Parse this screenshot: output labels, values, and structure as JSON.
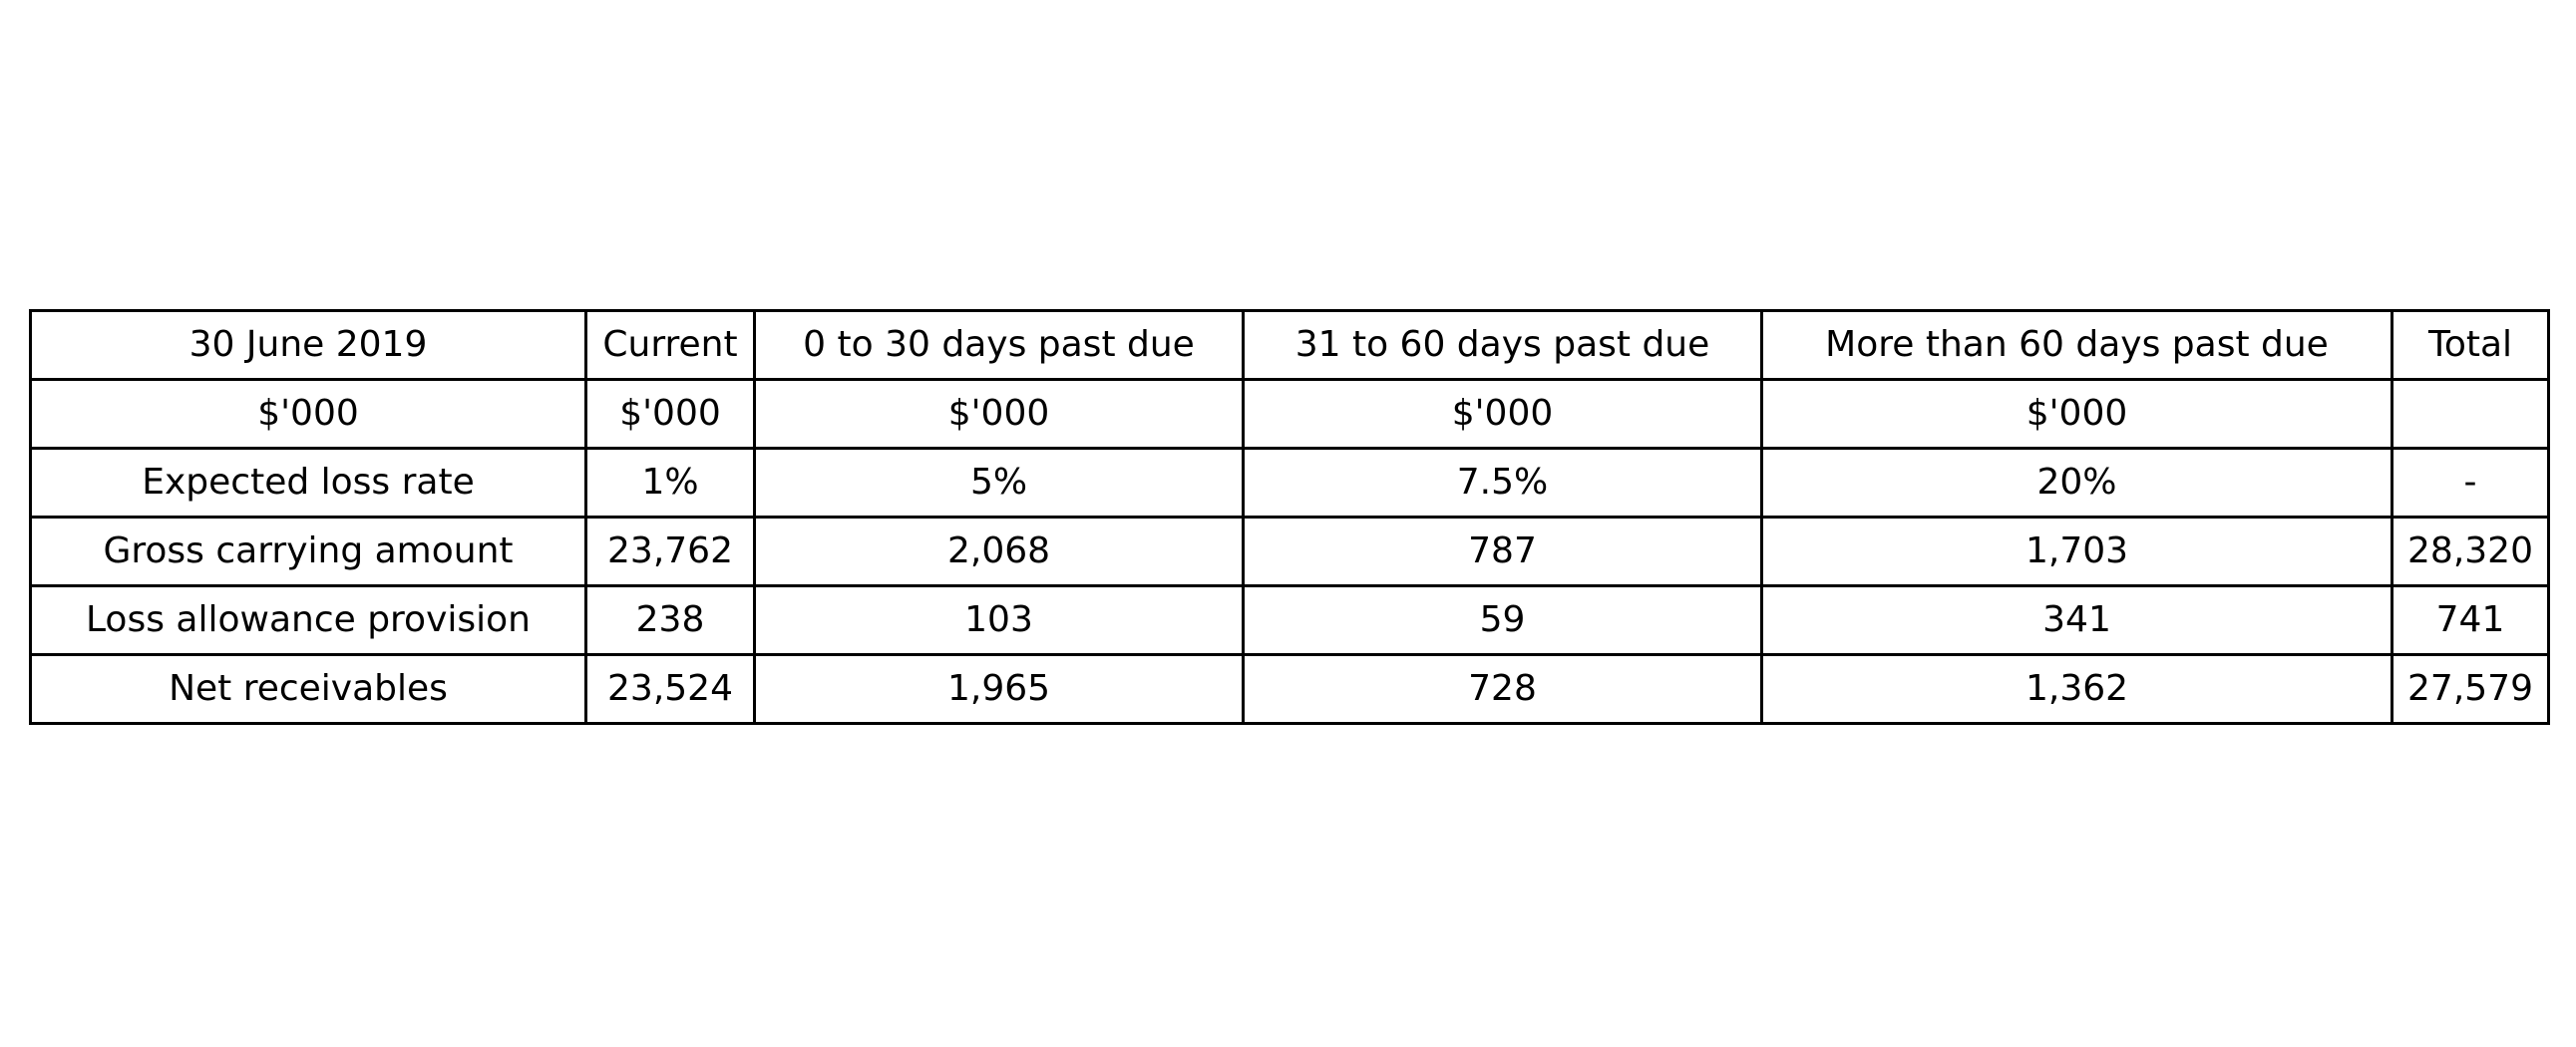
{
  "chart_data": {
    "type": "table",
    "columns": [
      "30 June 2019",
      "Current",
      "0 to 30 days past due",
      "31 to 60 days past due",
      "More than 60 days past due",
      "Total"
    ],
    "rows": [
      [
        "$'000",
        "$'000",
        "$'000",
        "$'000",
        "$'000",
        ""
      ],
      [
        "Expected loss rate",
        "1%",
        "5%",
        "7.5%",
        "20%",
        "-"
      ],
      [
        "Gross carrying amount",
        "23,762",
        "2,068",
        "787",
        "1,703",
        "28,320"
      ],
      [
        "Loss allowance provision",
        "238",
        "103",
        "59",
        "341",
        "741"
      ],
      [
        "Net receivables",
        "23,524",
        "1,965",
        "728",
        "1,362",
        "27,579"
      ]
    ]
  }
}
